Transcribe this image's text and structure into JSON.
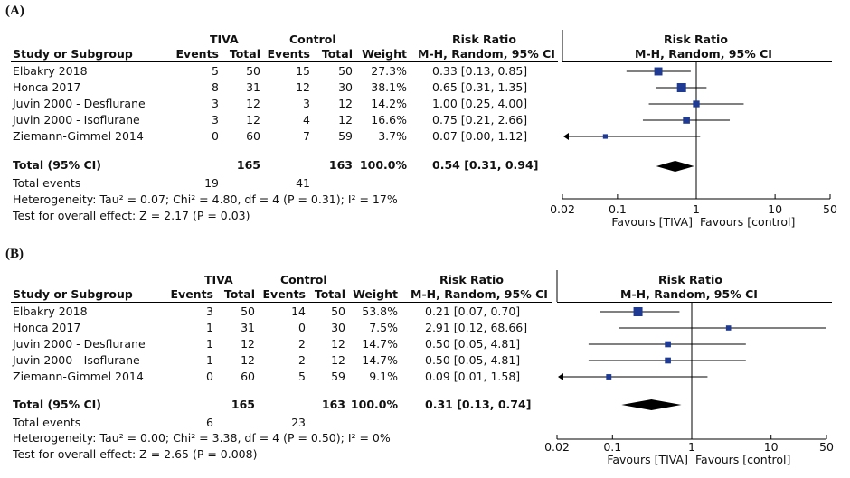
{
  "panels": [
    {
      "label": "(A)",
      "header": {
        "group1": "TIVA",
        "group2": "Control",
        "study": "Study or Subgroup",
        "events": "Events",
        "total": "Total",
        "weight": "Weight",
        "rr_title": "Risk Ratio",
        "rr_method": "M-H, Random, 95% CI",
        "plot_title": "Risk Ratio",
        "plot_method": "M-H, Random, 95% CI"
      },
      "studies": [
        {
          "name": "Elbakry 2018",
          "e1": "5",
          "n1": "50",
          "e2": "15",
          "n2": "50",
          "weight": "27.3%",
          "ci": "0.33 [0.13, 0.85]"
        },
        {
          "name": "Honca 2017",
          "e1": "8",
          "n1": "31",
          "e2": "12",
          "n2": "30",
          "weight": "38.1%",
          "ci": "0.65 [0.31, 1.35]"
        },
        {
          "name": "Juvin 2000 - Desflurane",
          "e1": "3",
          "n1": "12",
          "e2": "3",
          "n2": "12",
          "weight": "14.2%",
          "ci": "1.00 [0.25, 4.00]"
        },
        {
          "name": "Juvin 2000 - Isoflurane",
          "e1": "3",
          "n1": "12",
          "e2": "4",
          "n2": "12",
          "weight": "16.6%",
          "ci": "0.75 [0.21, 2.66]"
        },
        {
          "name": "Ziemann-Gimmel 2014",
          "e1": "0",
          "n1": "60",
          "e2": "7",
          "n2": "59",
          "weight": "3.7%",
          "ci": "0.07 [0.00, 1.12]"
        }
      ],
      "total": {
        "label": "Total (95% CI)",
        "n1": "165",
        "n2": "163",
        "weight": "100.0%",
        "ci": "0.54 [0.31, 0.94]"
      },
      "total_events": {
        "label": "Total events",
        "e1": "19",
        "e2": "41"
      },
      "heterogeneity": "Heterogeneity: Tau² = 0.07; Chi² = 4.80, df = 4 (P = 0.31); I² = 17%",
      "overall": "Test for overall effect: Z = 2.17 (P = 0.03)",
      "axis": {
        "ticks": [
          "0.02",
          "0.1",
          "1",
          "10",
          "50"
        ],
        "favours_left": "Favours [TIVA]",
        "favours_right": "Favours [control]"
      }
    },
    {
      "label": "(B)",
      "header": {
        "group1": "TIVA",
        "group2": "Control",
        "study": "Study or Subgroup",
        "events": "Events",
        "total": "Total",
        "weight": "Weight",
        "rr_title": "Risk Ratio",
        "rr_method": "M-H, Random, 95% CI",
        "plot_title": "Risk Ratio",
        "plot_method": "M-H, Random, 95% CI"
      },
      "studies": [
        {
          "name": "Elbakry 2018",
          "e1": "3",
          "n1": "50",
          "e2": "14",
          "n2": "50",
          "weight": "53.8%",
          "ci": "0.21 [0.07, 0.70]"
        },
        {
          "name": "Honca 2017",
          "e1": "1",
          "n1": "31",
          "e2": "0",
          "n2": "30",
          "weight": "7.5%",
          "ci": "2.91 [0.12, 68.66]"
        },
        {
          "name": "Juvin 2000 - Desflurane",
          "e1": "1",
          "n1": "12",
          "e2": "2",
          "n2": "12",
          "weight": "14.7%",
          "ci": "0.50 [0.05, 4.81]"
        },
        {
          "name": "Juvin 2000 - Isoflurane",
          "e1": "1",
          "n1": "12",
          "e2": "2",
          "n2": "12",
          "weight": "14.7%",
          "ci": "0.50 [0.05, 4.81]"
        },
        {
          "name": "Ziemann-Gimmel 2014",
          "e1": "0",
          "n1": "60",
          "e2": "5",
          "n2": "59",
          "weight": "9.1%",
          "ci": "0.09 [0.01, 1.58]"
        }
      ],
      "total": {
        "label": "Total (95% CI)",
        "n1": "165",
        "n2": "163",
        "weight": "100.0%",
        "ci": "0.31 [0.13, 0.74]"
      },
      "total_events": {
        "label": "Total events",
        "e1": "6",
        "e2": "23"
      },
      "heterogeneity": "Heterogeneity: Tau² = 0.00; Chi² = 3.38, df = 4 (P = 0.50); I² = 0%",
      "overall": "Test for overall effect: Z = 2.65 (P = 0.008)",
      "axis": {
        "ticks": [
          "0.02",
          "0.1",
          "1",
          "10",
          "50"
        ],
        "favours_left": "Favours [TIVA]",
        "favours_right": "Favours [control]"
      }
    }
  ],
  "chart_data": [
    {
      "type": "forest",
      "scale": "log",
      "xlim": [
        0.02,
        50
      ],
      "reference_line": 1,
      "studies": [
        {
          "name": "Elbakry 2018",
          "rr": 0.33,
          "lo": 0.13,
          "hi": 0.85,
          "weight": 27.3
        },
        {
          "name": "Honca 2017",
          "rr": 0.65,
          "lo": 0.31,
          "hi": 1.35,
          "weight": 38.1
        },
        {
          "name": "Juvin 2000 - Desflurane",
          "rr": 1.0,
          "lo": 0.25,
          "hi": 4.0,
          "weight": 14.2
        },
        {
          "name": "Juvin 2000 - Isoflurane",
          "rr": 0.75,
          "lo": 0.21,
          "hi": 2.66,
          "weight": 16.6
        },
        {
          "name": "Ziemann-Gimmel 2014",
          "rr": 0.07,
          "lo": 0.0,
          "hi": 1.12,
          "weight": 3.7
        }
      ],
      "pooled": {
        "rr": 0.54,
        "lo": 0.31,
        "hi": 0.94
      },
      "marker_color": "#1f3a93"
    },
    {
      "type": "forest",
      "scale": "log",
      "xlim": [
        0.02,
        50
      ],
      "reference_line": 1,
      "studies": [
        {
          "name": "Elbakry 2018",
          "rr": 0.21,
          "lo": 0.07,
          "hi": 0.7,
          "weight": 53.8
        },
        {
          "name": "Honca 2017",
          "rr": 2.91,
          "lo": 0.12,
          "hi": 68.66,
          "weight": 7.5
        },
        {
          "name": "Juvin 2000 - Desflurane",
          "rr": 0.5,
          "lo": 0.05,
          "hi": 4.81,
          "weight": 14.7
        },
        {
          "name": "Juvin 2000 - Isoflurane",
          "rr": 0.5,
          "lo": 0.05,
          "hi": 4.81,
          "weight": 14.7
        },
        {
          "name": "Ziemann-Gimmel 2014",
          "rr": 0.09,
          "lo": 0.01,
          "hi": 1.58,
          "weight": 9.1
        }
      ],
      "pooled": {
        "rr": 0.31,
        "lo": 0.13,
        "hi": 0.74
      },
      "marker_color": "#1f3a93"
    }
  ]
}
